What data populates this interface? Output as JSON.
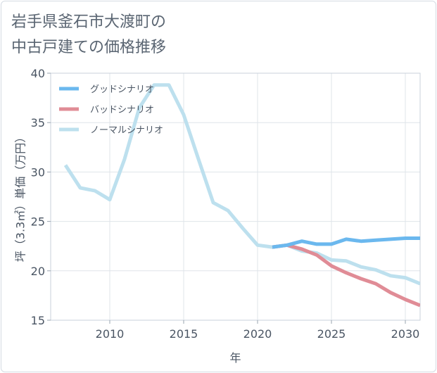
{
  "title_lines": [
    "岩手県釜石市大渡町の",
    "中古戸建ての価格推移"
  ],
  "chart_data": {
    "type": "line",
    "xlabel": "年",
    "ylabel": "坪（3.3㎡）単価（万円）",
    "xlim": [
      2006,
      2031
    ],
    "ylim": [
      15,
      40
    ],
    "xticks": [
      2010,
      2015,
      2020,
      2025,
      2030
    ],
    "yticks": [
      15,
      20,
      25,
      30,
      35,
      40
    ],
    "grid": true,
    "legend_position": "top-left",
    "series": [
      {
        "name": "グッドシナリオ",
        "color": "#6bb8ee",
        "x": [
          2021,
          2022,
          2023,
          2024,
          2025,
          2026,
          2027,
          2028,
          2029,
          2030,
          2031
        ],
        "values": [
          22.4,
          22.6,
          23.0,
          22.7,
          22.7,
          23.2,
          23.0,
          23.1,
          23.2,
          23.3,
          23.3
        ]
      },
      {
        "name": "バッドシナリオ",
        "color": "#e08c96",
        "x": [
          2021,
          2022,
          2023,
          2024,
          2025,
          2026,
          2027,
          2028,
          2029,
          2030,
          2031
        ],
        "values": [
          22.4,
          22.6,
          22.2,
          21.6,
          20.5,
          19.8,
          19.2,
          18.7,
          17.8,
          17.1,
          16.5
        ]
      },
      {
        "name": "ノーマルシナリオ",
        "color": "#bde0ee",
        "x": [
          2007,
          2008,
          2009,
          2010,
          2011,
          2012,
          2013,
          2014,
          2015,
          2016,
          2017,
          2018,
          2019,
          2020,
          2021,
          2022,
          2023,
          2024,
          2025,
          2026,
          2027,
          2028,
          2029,
          2030,
          2031
        ],
        "values": [
          30.7,
          28.4,
          28.1,
          27.2,
          31.3,
          36.5,
          38.8,
          38.8,
          35.8,
          31.3,
          26.9,
          26.1,
          24.3,
          22.6,
          22.4,
          22.6,
          22.0,
          21.8,
          21.1,
          21.0,
          20.4,
          20.1,
          19.5,
          19.3,
          18.7
        ]
      }
    ]
  }
}
